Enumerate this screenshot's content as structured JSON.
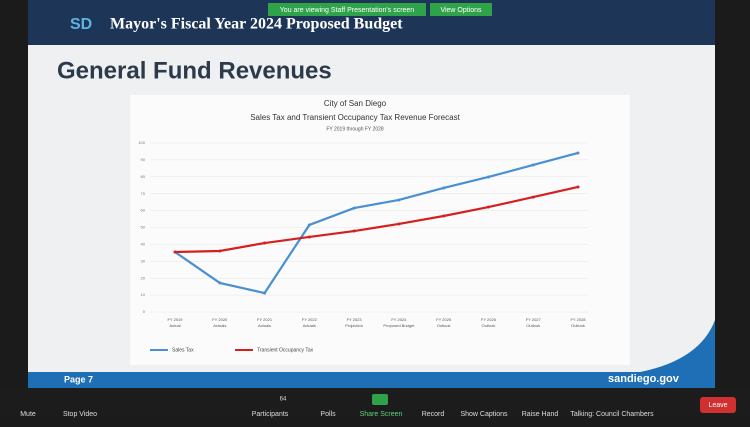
{
  "banner": {
    "text": "You are viewing Staff Presentation's screen",
    "options": "View Options"
  },
  "slide": {
    "header": "Mayor's Fiscal Year 2024 Proposed Budget",
    "logo": "SD",
    "heading": "General Fund Revenues",
    "page": "Page 7",
    "site": "sandiego.gov"
  },
  "chart_data": {
    "type": "line",
    "title": "City of San Diego",
    "subtitle": "Sales Tax and Transient Occupancy Tax Revenue Forecast",
    "note": "FY 2019 through FY 2028",
    "categories": [
      "FY 2019 Actual",
      "FY 2020 Actuals",
      "FY 2021 Actuals",
      "FY 2022 Actuals",
      "FY 2023 Projection",
      "FY 2024 Proposed Budget",
      "FY 2025 Outlook",
      "FY 2026 Outlook",
      "FY 2027 Outlook",
      "FY 2028 Outlook"
    ],
    "series": [
      {
        "name": "Sales Tax",
        "color": "#4a8fd0",
        "values": [
          35.5,
          17.2,
          11.2,
          51.5,
          61.5,
          66.3,
          73.4,
          79.9,
          87.0,
          94.1
        ]
      },
      {
        "name": "Transient Occupancy Tax",
        "color": "#d42020",
        "values": [
          35.5,
          36.1,
          40.8,
          44.4,
          47.9,
          52.1,
          56.8,
          62.1,
          68.0,
          74.0
        ]
      }
    ],
    "ylim": [
      0,
      100
    ],
    "yticks": [
      0,
      10,
      20,
      30,
      40,
      50,
      60,
      70,
      80,
      90,
      100
    ],
    "grid": true
  },
  "toolbar": {
    "mute": "Mute",
    "video": "Stop Video",
    "participants": "Participants",
    "count": "64",
    "polls": "Polls",
    "share": "Share Screen",
    "record": "Record",
    "captions": "Show Captions",
    "hand": "Raise Hand",
    "talking": "Talking: Council Chambers",
    "leave": "Leave"
  }
}
